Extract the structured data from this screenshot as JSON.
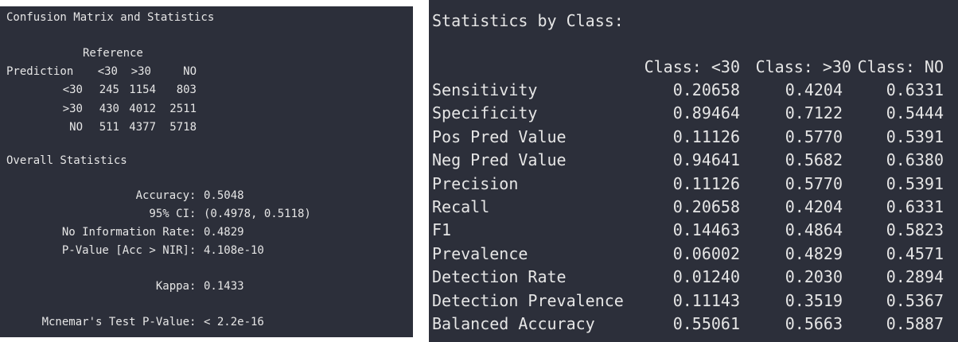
{
  "confusion": {
    "title": "Confusion Matrix and Statistics",
    "reference_label": "Reference",
    "prediction_label": "Prediction",
    "columns": [
      "<30",
      ">30",
      "NO"
    ],
    "rows": [
      {
        "label": "<30",
        "values": [
          "245",
          "1154",
          "803"
        ]
      },
      {
        "label": ">30",
        "values": [
          "430",
          "4012",
          "2511"
        ]
      },
      {
        "label": "NO",
        "values": [
          "511",
          "4377",
          "5718"
        ]
      }
    ]
  },
  "overall": {
    "title": "Overall Statistics",
    "stats": [
      {
        "label": "Accuracy",
        "value": "0.5048"
      },
      {
        "label": "95% CI",
        "value": "(0.4978, 0.5118)"
      },
      {
        "label": "No Information Rate",
        "value": "0.4829"
      },
      {
        "label": "P-Value [Acc > NIR]",
        "value": "4.108e-10"
      },
      {
        "label": "Kappa",
        "value": "0.1433"
      },
      {
        "label": "Mcnemar's Test P-Value",
        "value": "< 2.2e-16"
      }
    ]
  },
  "by_class": {
    "title": "Statistics by Class:",
    "columns": [
      "Class: <30",
      "Class: >30",
      "Class: NO"
    ],
    "rows": [
      {
        "label": "Sensitivity",
        "values": [
          "0.20658",
          "0.4204",
          "0.6331"
        ]
      },
      {
        "label": "Specificity",
        "values": [
          "0.89464",
          "0.7122",
          "0.5444"
        ]
      },
      {
        "label": "Pos Pred Value",
        "values": [
          "0.11126",
          "0.5770",
          "0.5391"
        ]
      },
      {
        "label": "Neg Pred Value",
        "values": [
          "0.94641",
          "0.5682",
          "0.6380"
        ]
      },
      {
        "label": "Precision",
        "values": [
          "0.11126",
          "0.5770",
          "0.5391"
        ]
      },
      {
        "label": "Recall",
        "values": [
          "0.20658",
          "0.4204",
          "0.6331"
        ]
      },
      {
        "label": "F1",
        "values": [
          "0.14463",
          "0.4864",
          "0.5823"
        ]
      },
      {
        "label": "Prevalence",
        "values": [
          "0.06002",
          "0.4829",
          "0.4571"
        ]
      },
      {
        "label": "Detection Rate",
        "values": [
          "0.01240",
          "0.2030",
          "0.2894"
        ]
      },
      {
        "label": "Detection Prevalence",
        "values": [
          "0.11143",
          "0.3519",
          "0.5367"
        ]
      },
      {
        "label": "Balanced Accuracy",
        "values": [
          "0.55061",
          "0.5663",
          "0.5887"
        ]
      }
    ]
  }
}
